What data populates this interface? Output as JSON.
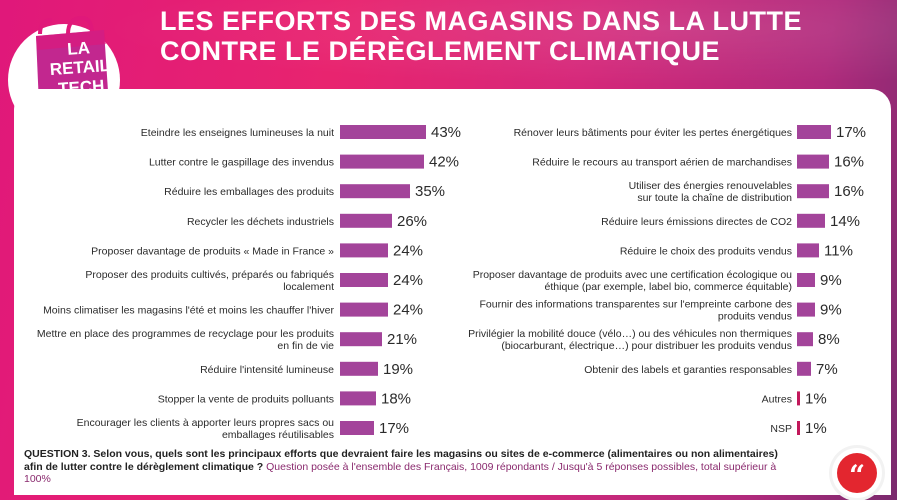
{
  "header": {
    "title_line1": "LES EFFORTS DES MAGASINS DANS LA LUTTE",
    "title_line2": "CONTRE LE DÉRÈGLEMENT CLIMATIQUE"
  },
  "logo": {
    "line1": "LA",
    "line2": "RETAIL",
    "line3": "TECH"
  },
  "colors": {
    "bar": "#a3449a",
    "bar_small": "#c2185b",
    "accent": "#e0187a",
    "quote": "#e3262f"
  },
  "footer": {
    "question": "QUESTION 3. Selon vous, quels sont les principaux efforts que devraient faire les magasins ou sites de e-commerce (alimentaires ou non alimentaires) afin de lutter contre le dérèglement climatique ?",
    "note": "Question posée à l'ensemble des Français, 1009 répondants / Jusqu'à 5 réponses possibles, total supérieur à 100%",
    "quote_icon": "quote-icon"
  },
  "chart_data": [
    {
      "type": "bar",
      "orientation": "horizontal",
      "unit": "%",
      "categories": [
        [
          "Eteindre les enseignes lumineuses la nuit"
        ],
        [
          "Lutter contre le gaspillage des invendus"
        ],
        [
          "Réduire les emballages des produits"
        ],
        [
          "Recycler les déchets industriels"
        ],
        [
          "Proposer davantage de produits « Made in France »"
        ],
        [
          "Proposer des produits cultivés, préparés ou fabriqués",
          "localement"
        ],
        [
          "Moins climatiser les magasins l'été et moins les chauffer l'hiver"
        ],
        [
          "Mettre en place des programmes de recyclage pour les produits",
          "en fin de vie"
        ],
        [
          "Réduire l'intensité lumineuse"
        ],
        [
          "Stopper la vente de produits polluants"
        ],
        [
          "Encourager les clients à apporter leurs propres sacs ou",
          "emballages réutilisables"
        ]
      ],
      "values": [
        43,
        42,
        35,
        26,
        24,
        24,
        24,
        21,
        19,
        18,
        17
      ]
    },
    {
      "type": "bar",
      "orientation": "horizontal",
      "unit": "%",
      "categories": [
        [
          "Rénover leurs bâtiments pour éviter les pertes énergétiques"
        ],
        [
          "Réduire le recours au transport aérien de marchandises"
        ],
        [
          "Utiliser des énergies renouvelables",
          "sur toute la chaîne de distribution"
        ],
        [
          "Réduire leurs émissions directes de CO2"
        ],
        [
          "Réduire le choix des produits vendus"
        ],
        [
          "Proposer davantage de produits avec une certification écologique ou",
          "éthique (par exemple, label bio, commerce équitable)"
        ],
        [
          "Fournir des informations transparentes sur l'empreinte carbone des",
          "produits vendus"
        ],
        [
          "Privilégier la mobilité douce (vélo…) ou des véhicules non thermiques",
          "(biocarburant, électrique…) pour distribuer les produits vendus"
        ],
        [
          "Obtenir des labels et garanties responsables"
        ],
        [
          "Autres"
        ],
        [
          "NSP"
        ]
      ],
      "values": [
        17,
        16,
        16,
        14,
        11,
        9,
        9,
        8,
        7,
        1,
        1
      ]
    }
  ]
}
